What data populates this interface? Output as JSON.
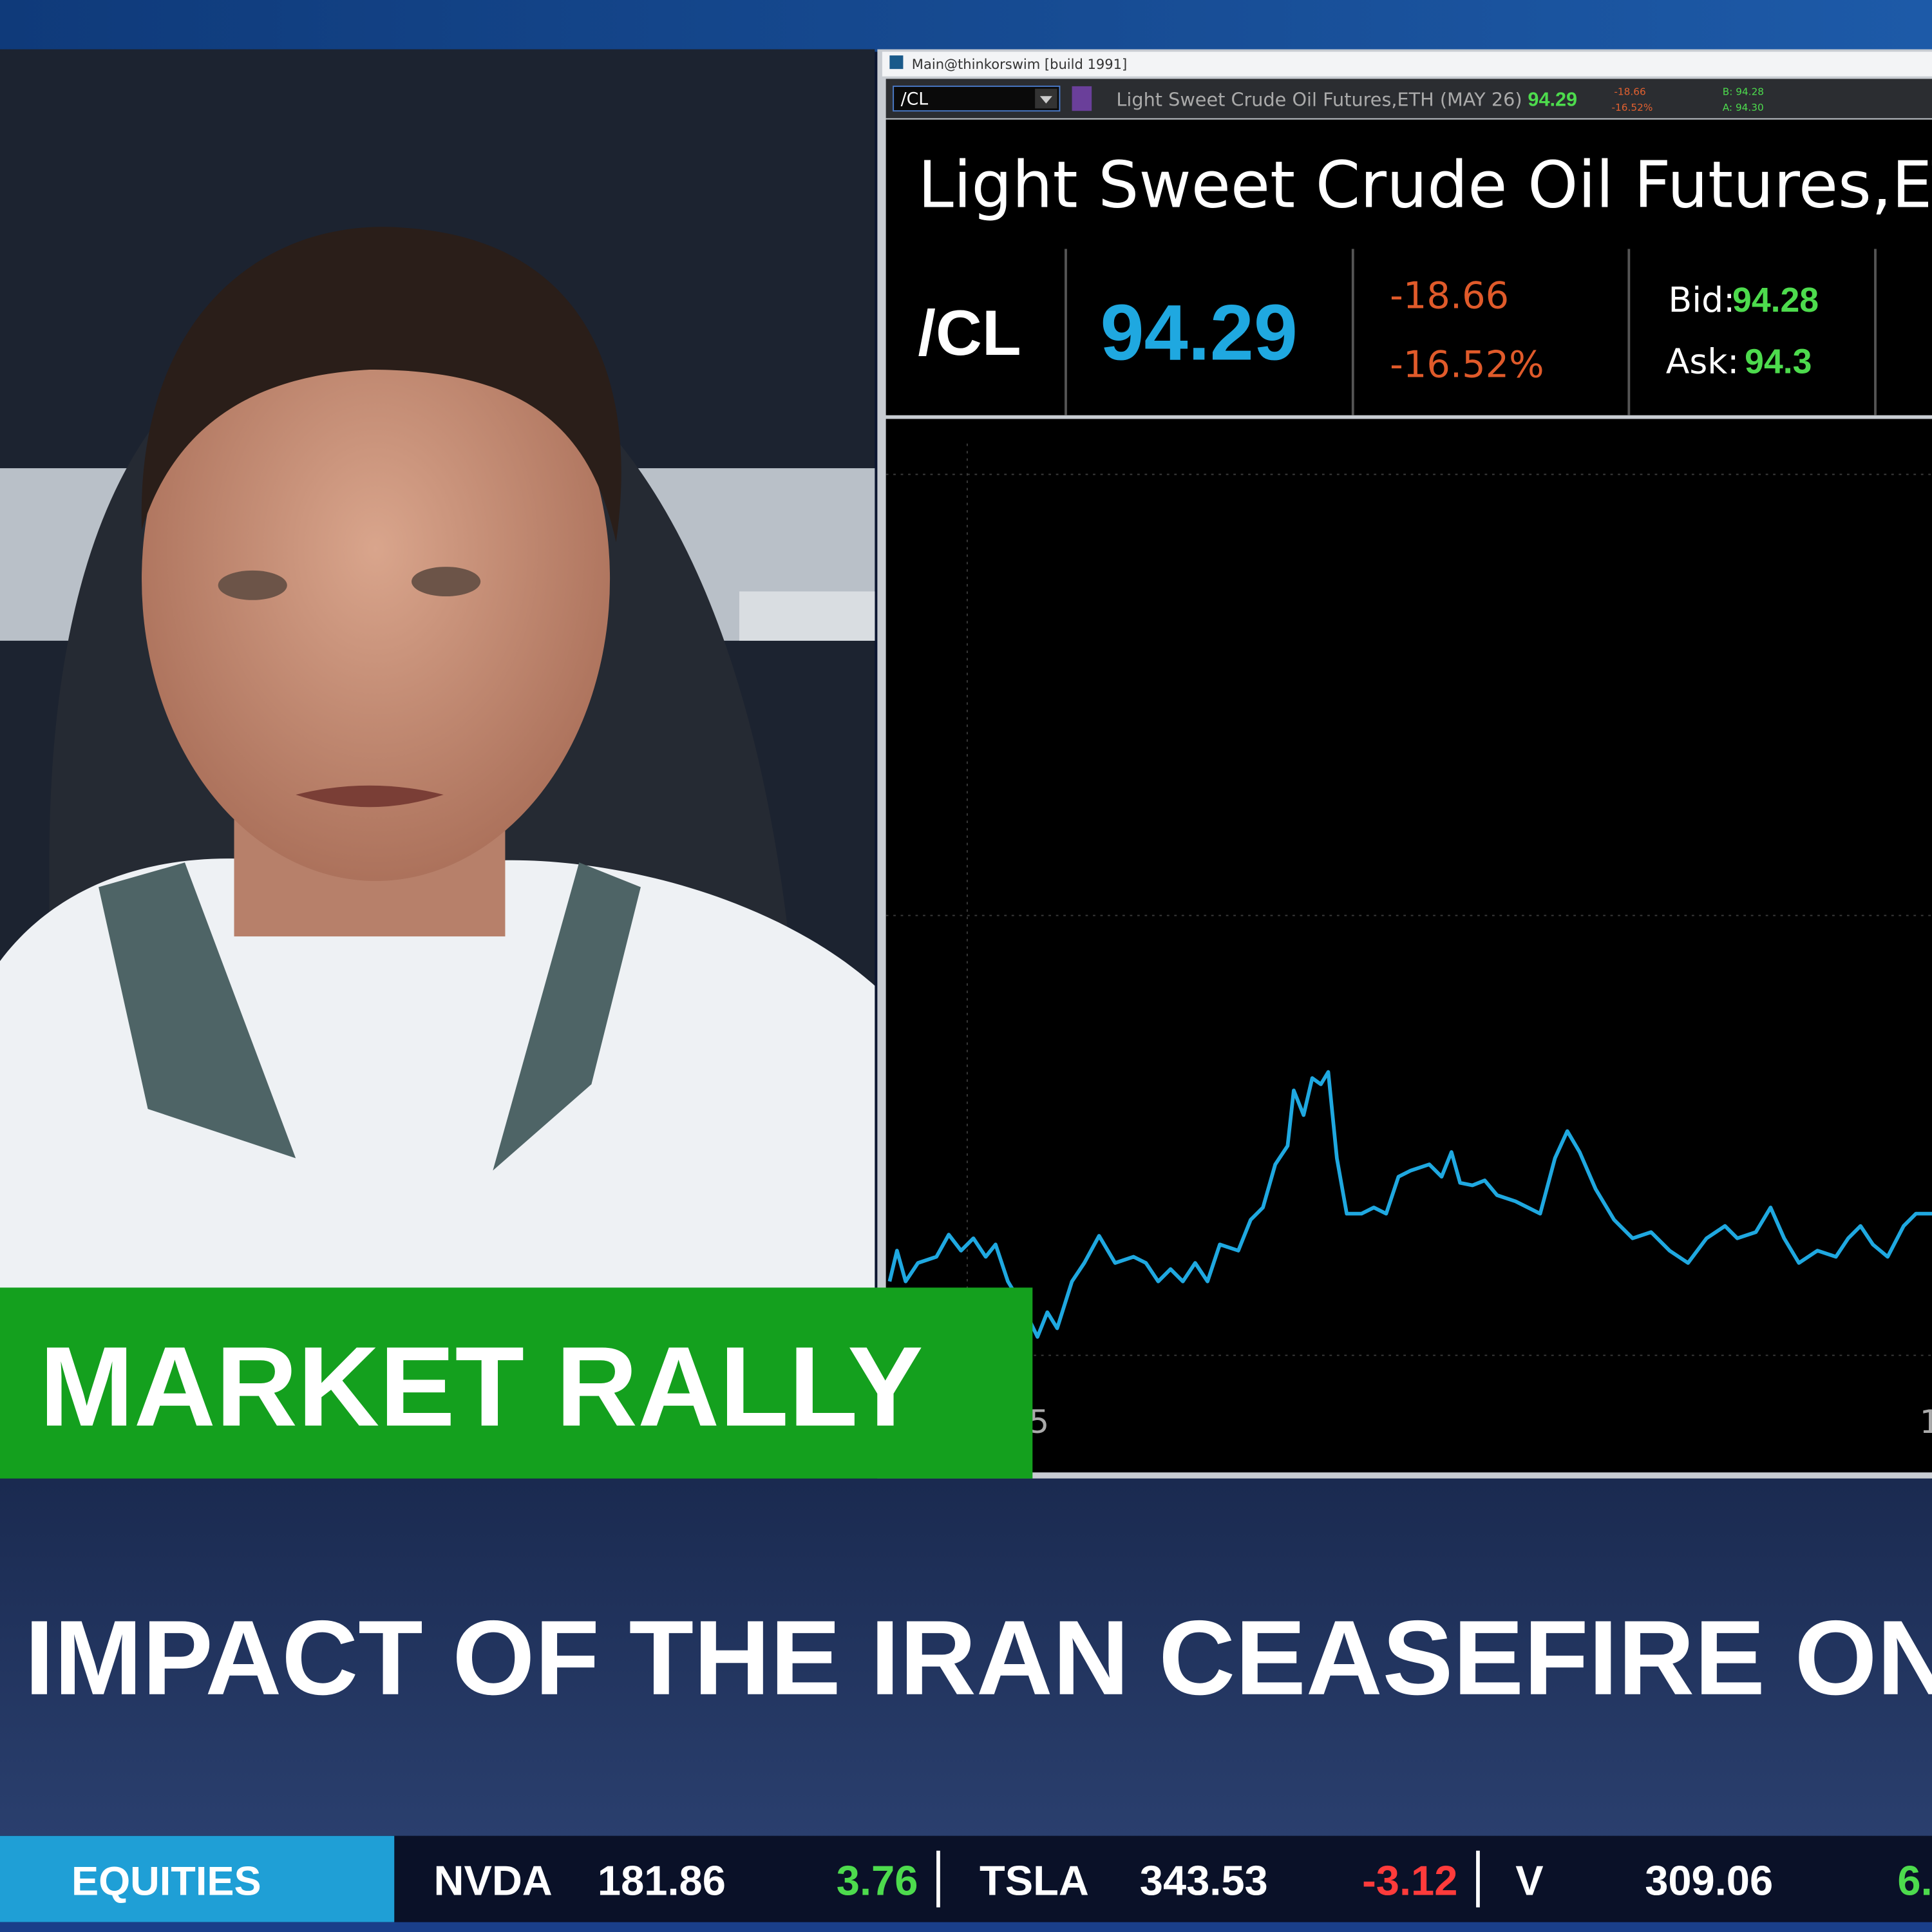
{
  "window": {
    "title": "Main@thinkorswim [build 1991]"
  },
  "toolbar": {
    "symbol": "/CL",
    "description": "Light Sweet Crude Oil Futures,ETH (MAY 26)",
    "last": "94.29",
    "change": "-18.66",
    "percent": "-16.52%",
    "bid": "B: 94.28",
    "ask": "A: 94.30"
  },
  "quote": {
    "title": "Light Sweet Crude Oil Futures,ETH",
    "symbol": "/CL",
    "last": "94.29",
    "change": "-18.66",
    "percent": "-16.52%",
    "bid_label": "Bid:",
    "bid": "94.28",
    "ask_label": "Ask:",
    "ask": "94.3"
  },
  "chart": {
    "x_labels": [
      "5",
      "1"
    ]
  },
  "banner": {
    "label": "MARKET RALLY"
  },
  "headline": "IMPACT OF THE IRAN CEASEFIRE ON O",
  "ticker": {
    "section": "EQUITIES",
    "items": [
      {
        "symbol": "NVDA",
        "price": "181.86",
        "change": "3.76"
      },
      {
        "symbol": "TSLA",
        "price": "343.53",
        "change": "-3.12"
      },
      {
        "symbol": "V",
        "price": "309.06",
        "change": "6."
      }
    ]
  }
}
